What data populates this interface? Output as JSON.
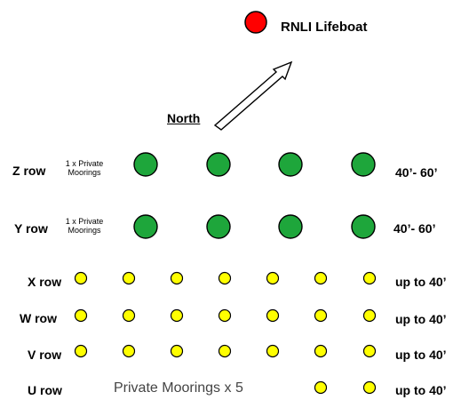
{
  "lifeboat": {
    "label": "RNLI Lifeboat",
    "color": "#ff0000"
  },
  "north": {
    "label": "North",
    "arrow_icon": "north-arrow-icon"
  },
  "colors": {
    "large_mooring": "#1ea63b",
    "small_mooring": "#ffff00",
    "outline": "#000000"
  },
  "rows": [
    {
      "id": "z",
      "label": "Z row",
      "note_line1": "1 x Private",
      "note_line2": "Moorings",
      "moorings": 4,
      "size": "40’- 60’",
      "mooring_type": "large"
    },
    {
      "id": "y",
      "label": "Y row",
      "note_line1": "1 x Private",
      "note_line2": "Moorings",
      "moorings": 4,
      "size": "40’- 60’",
      "mooring_type": "large"
    },
    {
      "id": "x",
      "label": "X row",
      "moorings": 7,
      "size": "up to 40’",
      "mooring_type": "small"
    },
    {
      "id": "w",
      "label": "W row",
      "moorings": 7,
      "size": "up to 40’",
      "mooring_type": "small"
    },
    {
      "id": "v",
      "label": "V row",
      "moorings": 7,
      "size": "up to 40’",
      "mooring_type": "small"
    },
    {
      "id": "u",
      "label": "U row",
      "private_text": "Private Moorings x 5",
      "moorings": 2,
      "size": "up to 40’",
      "mooring_type": "small"
    }
  ]
}
